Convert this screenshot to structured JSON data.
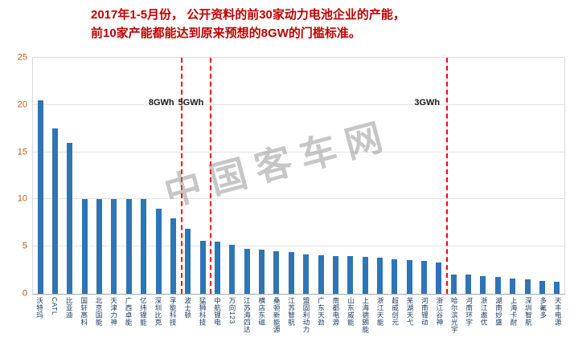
{
  "title": {
    "line1": "2017年1-5月份， 公开资料的前30家动力电池企业的产能，",
    "line2": "前10家产能都能达到原来预想的8GW的门槛标准。"
  },
  "watermark": "中国客车网",
  "colors": {
    "title_red": "#c00000",
    "bar_blue": "#2e75b6",
    "threshold_red": "#fe0000",
    "ytick_orange": "#c55a11"
  },
  "chart_data": {
    "type": "bar",
    "title": "2017年1-5月份前30家动力电池企业产能 (GWh)",
    "xlabel": "",
    "ylabel": "",
    "ylim": [
      0,
      25
    ],
    "yticks": [
      0,
      5,
      10,
      15,
      20,
      25
    ],
    "grid": true,
    "legend": "none",
    "categories": [
      "沃特玛",
      "CATL",
      "比亚迪",
      "国轩高科",
      "北京国能",
      "天津力神",
      "广西卓能",
      "亿纬锂能",
      "深圳比克",
      "孚能科技",
      "波士顿",
      "猛狮科技",
      "中航锂电",
      "万向123",
      "江苏海四达",
      "横店东磁",
      "桑顿新能源",
      "江苏智航",
      "盟固利动力",
      "广东天劲",
      "南都电源",
      "山东威能",
      "上海德朗能",
      "浙江天能",
      "超威创元",
      "芜湖天弋",
      "河南锂动",
      "浙江谷神",
      "哈尔滨光宇",
      "河南环宇",
      "浙江遨优",
      "湖南妙盛",
      "上海卡耐",
      "深圳智航",
      "多氟多",
      "天丰电源"
    ],
    "values": [
      20.5,
      17.5,
      16,
      10,
      10,
      10,
      10,
      10,
      9,
      8,
      6.9,
      5.6,
      5.5,
      5.2,
      4.8,
      4.7,
      4.5,
      4.4,
      4.2,
      4.1,
      4.0,
      4.0,
      3.9,
      3.8,
      3.7,
      3.6,
      3.5,
      3.3,
      2.0,
      2.0,
      1.9,
      1.8,
      1.6,
      1.5,
      1.4,
      1.3
    ],
    "thresholds": [
      {
        "label": "8GWh",
        "after_index": 9
      },
      {
        "label": "5GWh",
        "after_index": 11
      },
      {
        "label": "3GWh",
        "after_index": 27
      }
    ]
  }
}
